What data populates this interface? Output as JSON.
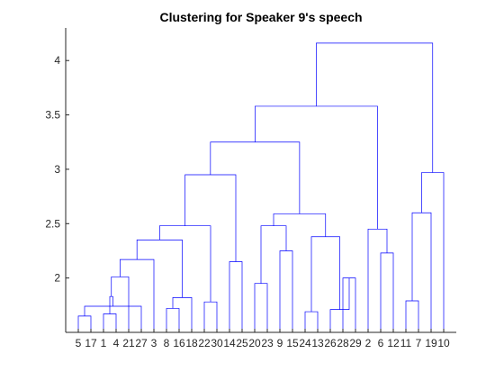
{
  "chart_data": {
    "type": "dendrogram",
    "title": "Clustering for Speaker 9's speech",
    "xlabel": "",
    "ylabel": "",
    "ylim": [
      1.5,
      4.3
    ],
    "y_ticks": [
      2,
      2.5,
      3,
      3.5,
      4
    ],
    "y_tick_labels": [
      "2",
      "2.5",
      "3",
      "3.5",
      "4"
    ],
    "leaf_order": [
      5,
      17,
      1,
      4,
      21,
      27,
      3,
      8,
      16,
      18,
      22,
      30,
      14,
      25,
      20,
      23,
      9,
      15,
      24,
      13,
      26,
      28,
      29,
      2,
      6,
      12,
      11,
      7,
      19,
      10
    ],
    "link_color": "#0000ff",
    "links": [
      {
        "a": "L5",
        "b": "L17",
        "height": 1.65
      },
      {
        "a": "L1",
        "b": "L4",
        "height": 1.67
      },
      {
        "a": "N1",
        "b": "L27",
        "height": 1.74
      },
      {
        "a": "N3",
        "b": "N2",
        "height": 1.83
      },
      {
        "a": "N4",
        "b": "L21",
        "height": 2.01
      },
      {
        "a": "N5",
        "b": "L3",
        "height": 2.17
      },
      {
        "a": "L8",
        "b": "L16",
        "height": 1.72
      },
      {
        "a": "N7",
        "b": "L18",
        "height": 1.82
      },
      {
        "a": "N6",
        "b": "N8",
        "height": 2.35
      },
      {
        "a": "L22",
        "b": "L30",
        "height": 1.78
      },
      {
        "a": "N9",
        "b": "N10",
        "height": 2.48
      },
      {
        "a": "L14",
        "b": "L25",
        "height": 2.15
      },
      {
        "a": "N11",
        "b": "N12",
        "height": 2.95
      },
      {
        "a": "L20",
        "b": "L23",
        "height": 1.95
      },
      {
        "a": "L9",
        "b": "L15",
        "height": 2.25
      },
      {
        "a": "N14",
        "b": "N15",
        "height": 2.48
      },
      {
        "a": "L24",
        "b": "L13",
        "height": 1.69
      },
      {
        "a": "L28",
        "b": "L29",
        "height": 2.0
      },
      {
        "a": "L26",
        "b": "N18",
        "height": 1.71
      },
      {
        "a": "N17",
        "b": "N19",
        "height": 2.38
      },
      {
        "a": "N16",
        "b": "N20",
        "height": 2.59
      },
      {
        "a": "N13",
        "b": "N21",
        "height": 3.25
      },
      {
        "a": "L6",
        "b": "L12",
        "height": 2.23
      },
      {
        "a": "L2",
        "b": "N23",
        "height": 2.45
      },
      {
        "a": "N22",
        "b": "N24",
        "height": 3.58
      },
      {
        "a": "L11",
        "b": "L7",
        "height": 1.79
      },
      {
        "a": "N26",
        "b": "L19",
        "height": 2.6
      },
      {
        "a": "N27",
        "b": "L10",
        "height": 2.97
      },
      {
        "a": "N25",
        "b": "N28",
        "height": 4.16
      }
    ]
  }
}
